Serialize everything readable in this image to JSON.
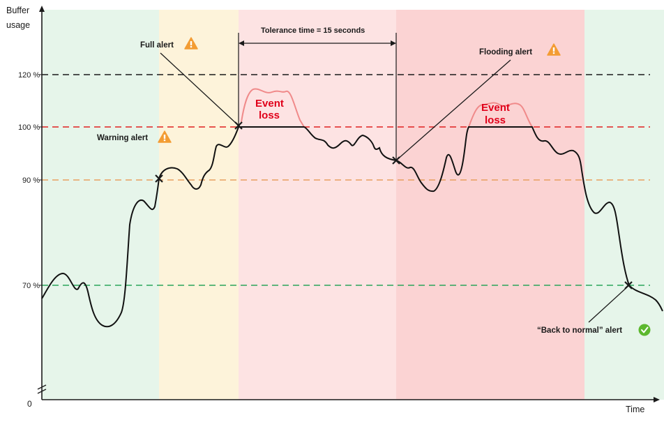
{
  "axes": {
    "y_label_line1": "Buffer",
    "y_label_line2": "usage",
    "x_label": "Time",
    "origin": "0",
    "ticks": [
      "120 %",
      "100 %",
      "90 %",
      "70 %"
    ]
  },
  "annotations": {
    "warning_alert": "Warning alert",
    "full_alert": "Full alert",
    "tolerance": "Tolerance time = 15 seconds",
    "flooding_alert": "Flooding alert",
    "event_loss_1_line1": "Event",
    "event_loss_1_line2": "loss",
    "event_loss_2_line1": "Event",
    "event_loss_2_line2": "loss",
    "back_to_normal": "“Back to normal” alert"
  },
  "colors": {
    "zone_normal": "#e6f5ea",
    "zone_warning": "#fdf3da",
    "zone_full": "#fde3e3",
    "zone_flooding": "#fbd3d3",
    "line_120": "#1a1a1a",
    "line_100": "#e02020",
    "line_90": "#e8a060",
    "line_70": "#2aa55a",
    "event_loss_text": "#e0001a",
    "warning_icon": "#f39c33",
    "check_icon": "#5cb82e"
  }
}
